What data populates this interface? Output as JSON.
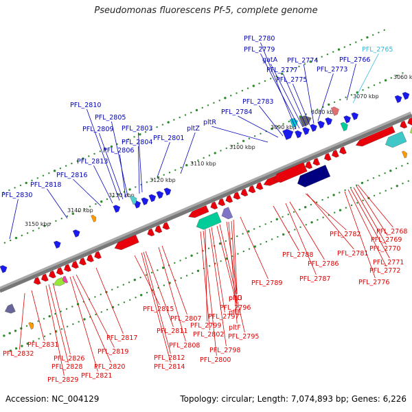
{
  "title": "Pseudomonas fluorescens Pf-5, complete genome",
  "footer": {
    "accession": "Accession: NC_004129",
    "summary": "Topology: circular; Length: 7,074,893 bp; Genes: 6,226"
  },
  "colors": {
    "backbone": "#777777",
    "tick": "#2e8b2e",
    "forward_label": "#0000bb",
    "reverse_label": "#dd0000",
    "rna_label": "#33bbdd"
  },
  "kbp_ticks": [
    "3060 kbp",
    "3070 kbp",
    "3080 kbp",
    "3090 kbp",
    "3100 kbp",
    "3110 kbp",
    "3120 kbp",
    "3130 kbp",
    "3140 kbp",
    "3150 kbp"
  ],
  "labels_forward": [
    "PFL_2765",
    "PFL_2766",
    "PFL_2773",
    "PFL_2774",
    "PFL_2775",
    "PFL_2777",
    "gatA",
    "PFL_2779",
    "PFL_2780",
    "PFL_2783",
    "PFL_2784",
    "pltR",
    "pltZ",
    "PFL_2801",
    "PFL_2803",
    "PFL_2804",
    "PFL_2805",
    "PFL_2806",
    "PFL_2809",
    "PFL_2810",
    "PFL_2813",
    "PFL_2816",
    "PFL_2818",
    "PFL_2830"
  ],
  "labels_reverse": [
    "PFL_2768",
    "PFL_2769",
    "PFL_2770",
    "PFL_2771",
    "PFL_2772",
    "PFL_2776",
    "PFL_2781",
    "PFL_2782",
    "PFL_2786",
    "PFL_2787",
    "PFL_2788",
    "PFL_2789",
    "pltD",
    "pltE",
    "pltF",
    "pltG",
    "PFL_2795",
    "PFL_2796",
    "PFL_2797",
    "PFL_2798",
    "PFL_2799",
    "PFL_2800",
    "PFL_2802",
    "PFL_2807",
    "PFL_2808",
    "PFL_2811",
    "PFL_2812",
    "PFL_2814",
    "PFL_2815",
    "PFL_2817",
    "PFL_2819",
    "PFL_2820",
    "PFL_2821",
    "PFL_2826",
    "PFL_2828",
    "PFL_2829",
    "PFL_2831",
    "PFL_2832"
  ]
}
